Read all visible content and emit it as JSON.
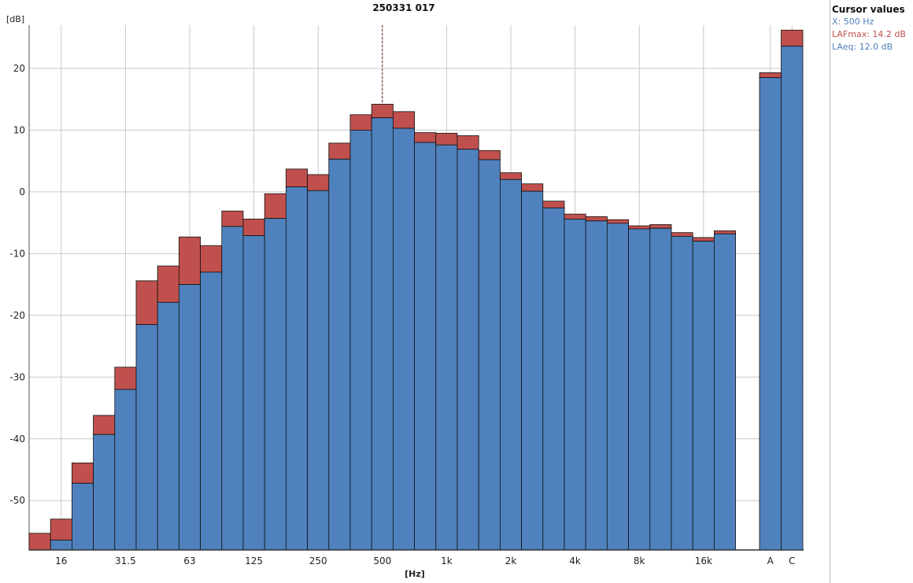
{
  "colors": {
    "laeq": "#4f81bd",
    "lafmax": "#c0504d",
    "x": "#4f81bd",
    "grid": "#c8c8c8"
  },
  "cursor_panel": {
    "title": "Cursor values",
    "x": "X: 500 Hz",
    "lafmax": "LAFmax: 14.2 dB",
    "laeq": "LAeq: 12.0 dB"
  },
  "chart_data": {
    "type": "bar",
    "title": "250331 017",
    "ylabel": "[dB]",
    "xlabel": "[Hz]",
    "ylim": [
      -58,
      27
    ],
    "yticks": [
      20,
      10,
      0,
      -10,
      -20,
      -30,
      -40,
      -50
    ],
    "grid": true,
    "cursor_x": "500",
    "bands": [
      "12.5",
      "16",
      "20",
      "25",
      "31.5",
      "40",
      "50",
      "63",
      "80",
      "100",
      "125",
      "160",
      "200",
      "250",
      "315",
      "400",
      "500",
      "630",
      "800",
      "1k",
      "1.25k",
      "1.6k",
      "2k",
      "2.5k",
      "3.15k",
      "4k",
      "5k",
      "6.3k",
      "8k",
      "10k",
      "12.5k",
      "16k",
      "20k"
    ],
    "band_labels": [
      "",
      "16",
      "",
      "",
      "31.5",
      "",
      "",
      "63",
      "",
      "",
      "125",
      "",
      "",
      "250",
      "",
      "",
      "500",
      "",
      "",
      "1k",
      "",
      "",
      "2k",
      "",
      "",
      "4k",
      "",
      "",
      "8k",
      "",
      "",
      "16k",
      ""
    ],
    "series": [
      {
        "name": "LAFmax",
        "values": [
          -55.3,
          -53.0,
          -43.9,
          -36.2,
          -28.4,
          -14.4,
          -12.0,
          -7.3,
          -8.7,
          -3.1,
          -4.4,
          -0.3,
          3.7,
          2.8,
          7.9,
          12.5,
          14.2,
          13.0,
          9.6,
          9.5,
          9.1,
          6.7,
          3.1,
          1.3,
          -1.5,
          -3.6,
          -4.0,
          -4.5,
          -5.5,
          -5.3,
          -6.6,
          -7.4,
          -6.3
        ]
      },
      {
        "name": "LAeq",
        "values": [
          -58,
          -56.4,
          -47.2,
          -39.3,
          -32.0,
          -21.5,
          -17.9,
          -15.0,
          -13.0,
          -5.6,
          -7.1,
          -4.3,
          0.8,
          0.2,
          5.3,
          10.0,
          12.0,
          10.3,
          8.0,
          7.6,
          6.9,
          5.2,
          2.0,
          0.1,
          -2.6,
          -4.4,
          -4.7,
          -5.1,
          -6.0,
          -5.9,
          -7.2,
          -8.0,
          -6.8
        ]
      }
    ],
    "totals": {
      "labels": [
        "A",
        "C"
      ],
      "LAFmax": [
        19.3,
        26.2
      ],
      "LAeq": [
        18.5,
        23.6
      ]
    }
  }
}
